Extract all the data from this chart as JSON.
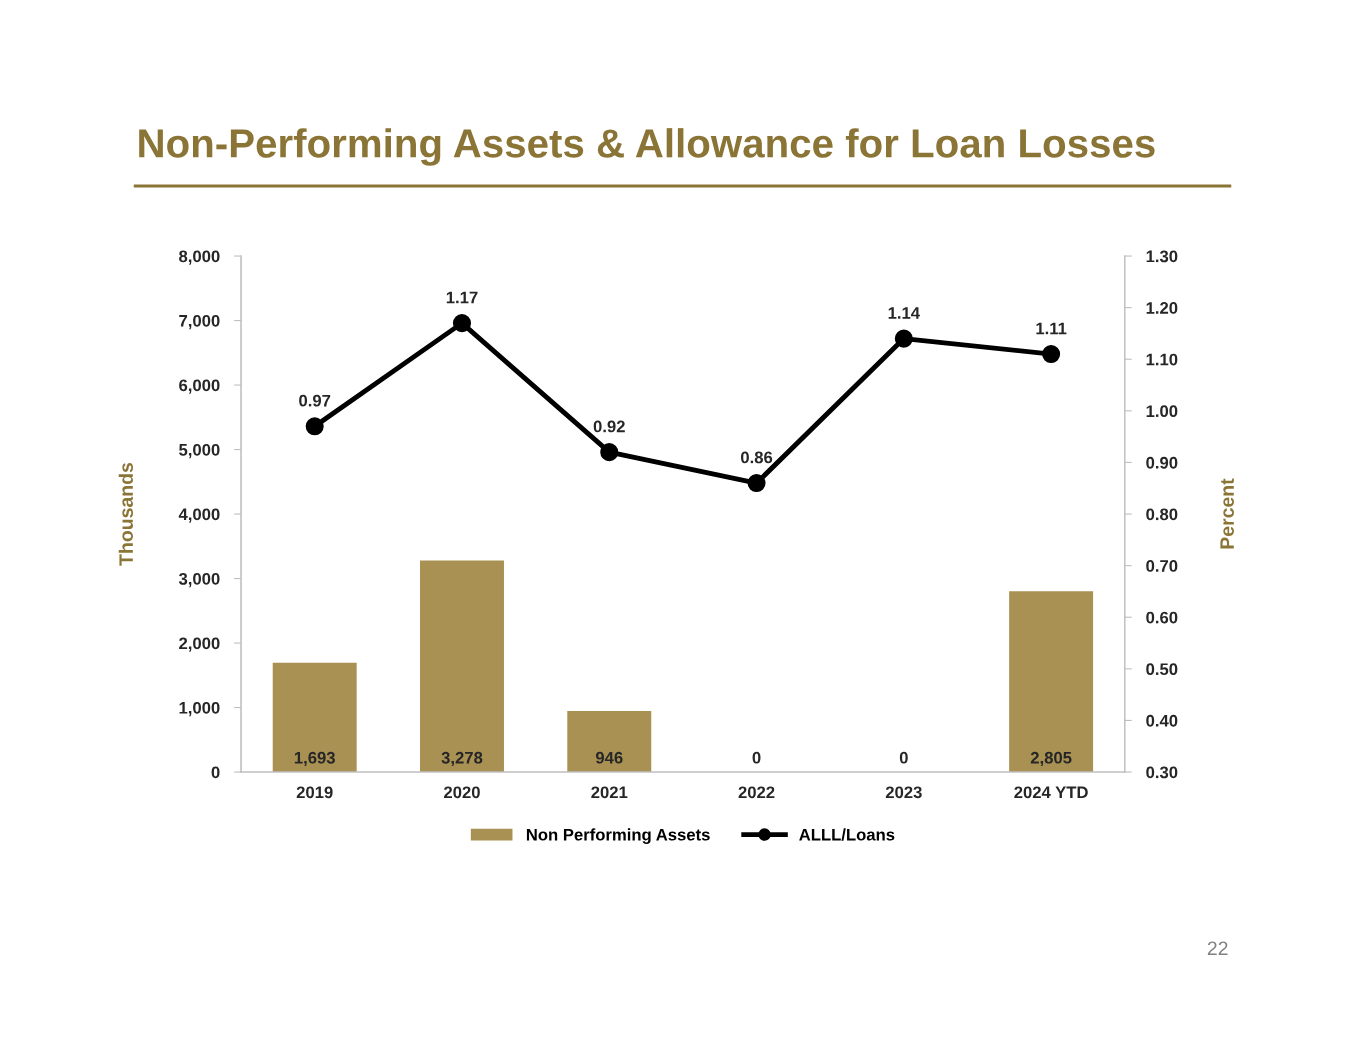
{
  "chart_data": {
    "type": "bar",
    "title": "Non-Performing Assets & Allowance for Loan Losses",
    "ylabel": "Thousands",
    "y2label": "Percent",
    "categories": [
      "2019",
      "2020",
      "2021",
      "2022",
      "2023",
      "2024 YTD"
    ],
    "series": [
      {
        "name": "Non Performing Assets",
        "color": "#a89152",
        "values": [
          1693,
          3278,
          946,
          0,
          0,
          2805
        ],
        "value_labels": [
          "1,693",
          "3,278",
          "946",
          "0",
          "0",
          "2,805"
        ]
      },
      {
        "name": "ALLL/Loans",
        "type": "line",
        "axis": "y2",
        "color": "#000000",
        "marker": "circle",
        "line_style": "solid",
        "values": [
          0.97,
          1.17,
          0.92,
          0.86,
          1.14,
          1.11
        ],
        "value_labels": [
          "0.97",
          "1.17",
          "0.92",
          "0.86",
          "1.14",
          "1.11"
        ]
      }
    ],
    "ylim": [
      0,
      8000
    ],
    "yticks": [
      0,
      {
        "value": 1000,
        "label": "1,000"
      },
      {
        "value": 2000,
        "label": "2,000"
      },
      {
        "value": 3000,
        "label": "3,000"
      },
      {
        "value": 4000,
        "label": "4,000"
      },
      {
        "value": 5000,
        "label": "5,000"
      },
      {
        "value": 6000,
        "label": "6,000"
      },
      {
        "value": 7000,
        "label": "7,000"
      },
      {
        "value": 8000,
        "label": "8,000"
      }
    ],
    "y2lim": [
      0.3,
      1.3
    ],
    "y2ticks": [
      {
        "value": 0.3,
        "label": "0.30"
      },
      {
        "value": 0.4,
        "label": "0.40"
      },
      {
        "value": 0.5,
        "label": "0.50"
      },
      {
        "value": 0.6,
        "label": "0.60"
      },
      {
        "value": 0.7,
        "label": "0.70"
      },
      {
        "value": 0.8,
        "label": "0.80"
      },
      {
        "value": 0.9,
        "label": "0.90"
      },
      {
        "value": 1.0,
        "label": "1.00"
      },
      {
        "value": 1.1,
        "label": "1.10"
      },
      {
        "value": 1.2,
        "label": "1.20"
      },
      {
        "value": 1.3,
        "label": "1.30"
      }
    ],
    "grid": false,
    "legend": "bottom",
    "annotations": [
      "22"
    ]
  }
}
